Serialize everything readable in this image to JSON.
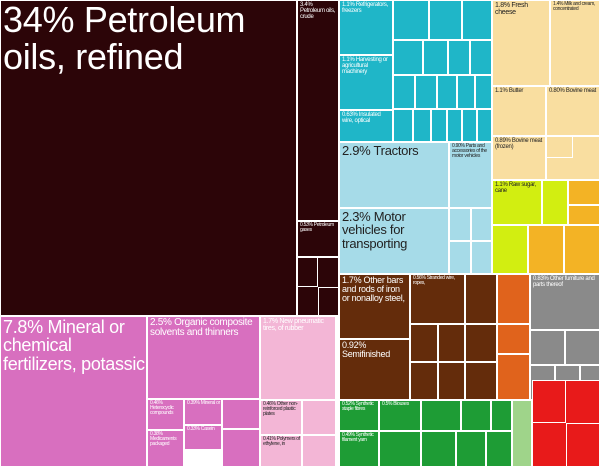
{
  "chart_data": {
    "type": "treemap",
    "items": [
      {
        "label": "34% Petroleum oils, refined",
        "value": 34,
        "color": "#2c0508"
      },
      {
        "label": "3.4% Petroleum oils, crude",
        "value": 3.4,
        "color": "#2c0508"
      },
      {
        "label": "0.53% Petroleum gases",
        "value": 0.53,
        "color": "#2c0508"
      },
      {
        "label": "7.8% Mineral or chemical fertilizers, potassic",
        "value": 7.8,
        "color": "#d86fbf"
      },
      {
        "label": "2.5% Organic composite solvents and thinners",
        "value": 2.5,
        "color": "#d86fbf"
      },
      {
        "label": "1.7% New pneumatic tires, of rubber",
        "value": 1.7,
        "color": "#f3b6d6"
      },
      {
        "label": "0.46% Heterocyclic compounds",
        "value": 0.46,
        "color": "#d86fbf"
      },
      {
        "label": "0.38% Medicaments packaged",
        "value": 0.38,
        "color": "#d86fbf"
      },
      {
        "label": "0.39% Mineral or",
        "value": 0.39,
        "color": "#d86fbf"
      },
      {
        "label": "0.33% Casein",
        "value": 0.33,
        "color": "#d86fbf"
      },
      {
        "label": "0.46% Other non-reinforced plastic plates",
        "value": 0.46,
        "color": "#f3b6d6"
      },
      {
        "label": "0.41% Polymers of ethylene, in",
        "value": 0.41,
        "color": "#f3b6d6"
      },
      {
        "label": "1.1% Refrigerators, freezers",
        "value": 1.1,
        "color": "#1fb6c8"
      },
      {
        "label": "1.1% Harvesting or agricultural machinery",
        "value": 1.1,
        "color": "#1fb6c8"
      },
      {
        "label": "0.63% Insulated wire, optical",
        "value": 0.63,
        "color": "#1fb6c8"
      },
      {
        "label": "2.9% Tractors",
        "value": 2.9,
        "color": "#a6dbe8"
      },
      {
        "label": "2.3% Motor vehicles for transporting",
        "value": 2.3,
        "color": "#a6dbe8"
      },
      {
        "label": "0.90% Parts and accessories of the motor vehicles",
        "value": 0.9,
        "color": "#a6dbe8"
      },
      {
        "label": "1.8% Fresh cheese",
        "value": 1.8,
        "color": "#f9dea0"
      },
      {
        "label": "1.4% Milk and cream, concentrated",
        "value": 1.4,
        "color": "#f9dea0"
      },
      {
        "label": "1.1% Butter",
        "value": 1.1,
        "color": "#f9dea0"
      },
      {
        "label": "0.80% Bovine meat",
        "value": 0.8,
        "color": "#f9dea0"
      },
      {
        "label": "0.89% Bovine meat (frozen)",
        "value": 0.89,
        "color": "#f9dea0"
      },
      {
        "label": "1.1% Raw sugar, cane",
        "value": 1.1,
        "color": "#d2ee11"
      },
      {
        "label": "1.7% Other bars and rods of iron or nonalloy steel,",
        "value": 1.7,
        "color": "#642c0b"
      },
      {
        "label": "0.92% Semifinished",
        "value": 0.92,
        "color": "#642c0b"
      },
      {
        "label": "0.56% Stranded wire, ropes,",
        "value": 0.56,
        "color": "#642c0b"
      },
      {
        "label": "0.83% Other furniture and parts thereof",
        "value": 0.83,
        "color": "#8a8a8a"
      },
      {
        "label": "0.52% Synthetic staple fibres",
        "value": 0.52,
        "color": "#1e9c35"
      },
      {
        "label": "0.5% Blouses",
        "value": 0.5,
        "color": "#1e9c35"
      },
      {
        "label": "0.49% Synthetic filament yarn",
        "value": 0.49,
        "color": "#1e9c35"
      }
    ]
  }
}
